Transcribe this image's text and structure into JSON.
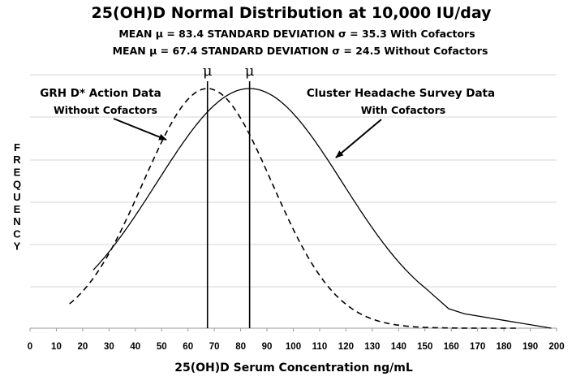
{
  "chart_data": {
    "type": "line",
    "title": "25(OH)D Normal Distribution at 10,000 IU/day",
    "subtitle_lines": [
      "MEAN μ = 83.4  STANDARD DEVIATION σ = 35.3 With Cofactors",
      "MEAN μ = 67.4  STANDARD DEVIATION σ = 24.5 Without Cofactors"
    ],
    "xlabel": "25(OH)D Serum Concentration ng/mL",
    "ylabel": "FREQUENCY",
    "xlim": [
      0,
      200
    ],
    "x_ticks": [
      0,
      10,
      20,
      30,
      40,
      50,
      60,
      70,
      80,
      90,
      100,
      110,
      120,
      130,
      140,
      150,
      160,
      170,
      180,
      190,
      200
    ],
    "grid": true,
    "series": [
      {
        "name": "Cluster Headache Survey Data With Cofactors",
        "style": "solid",
        "mean": 83.4,
        "sd": 35.3,
        "x_range": [
          24,
          198
        ],
        "tail_points": [
          [
            150,
            0.166
          ],
          [
            165,
            0.06
          ],
          [
            198,
            0.0
          ]
        ]
      },
      {
        "name": "GRH D* Action Data Without Cofactors",
        "style": "dashed",
        "mean": 67.4,
        "sd": 24.5,
        "x_range": [
          15,
          185
        ]
      }
    ],
    "mean_markers": [
      {
        "x": 67.4,
        "label": "μ"
      },
      {
        "x": 83.4,
        "label": "μ"
      }
    ],
    "annotations": [
      {
        "line1": "GRH D* Action Data",
        "line2": "Without Cofactors",
        "points_to": "dashed"
      },
      {
        "line1": "Cluster Headache Survey Data",
        "line2": "With Cofactors",
        "points_to": "solid"
      }
    ]
  }
}
